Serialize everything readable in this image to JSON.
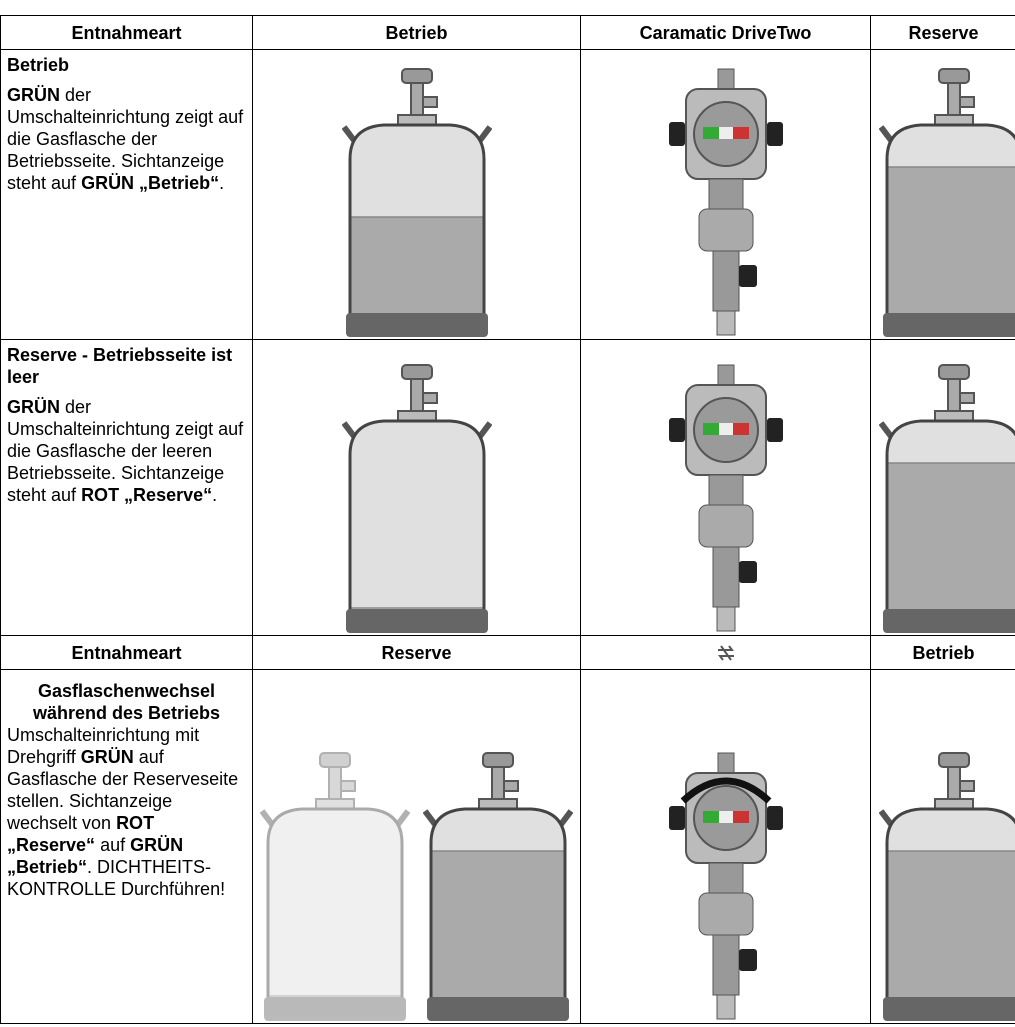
{
  "table": {
    "header": [
      "Entnahmeart",
      "Betrieb",
      "Caramatic DriveTwo",
      "Reserve"
    ],
    "rows": [
      {
        "title": "Betrieb",
        "text": [
          {
            "text": "GRÜN",
            "bold": true
          },
          {
            "text": " der Umschalteinrichtung zeigt auf die Gasflasche der Betriebsseite. Sichtanzeige steht auf "
          },
          {
            "text": "GRÜN „Betrieb“",
            "bold": true
          },
          {
            "text": "."
          }
        ]
      },
      {
        "title": "Reserve - Betriebsseite ist leer",
        "text": [
          {
            "text": "GRÜN",
            "bold": true
          },
          {
            "text": " der Umschalteinrichtung zeigt auf die Gasflasche der leeren Betriebsseite. Sichtanzeige steht auf "
          },
          {
            "text": "ROT „Reserve“",
            "bold": true
          },
          {
            "text": "."
          }
        ]
      }
    ],
    "header2": [
      "Entnahmeart",
      "Reserve",
      "Betrieb"
    ],
    "row3": {
      "title": "Gasflaschenwechsel während des Betriebs",
      "text": [
        {
          "text": "Umschalteinrichtung mit Drehgriff "
        },
        {
          "text": "GRÜN",
          "bold": true
        },
        {
          "text": " auf Gasflasche der Reserveseite stellen. Sichtanzeige wechselt von "
        },
        {
          "text": "ROT „Reserve“",
          "bold": true
        },
        {
          "text": " auf "
        },
        {
          "text": "GRÜN „Betrieb“",
          "bold": true
        },
        {
          "text": ". DICHTHEITS-KONTROLLE Durchführen!"
        }
      ]
    }
  }
}
